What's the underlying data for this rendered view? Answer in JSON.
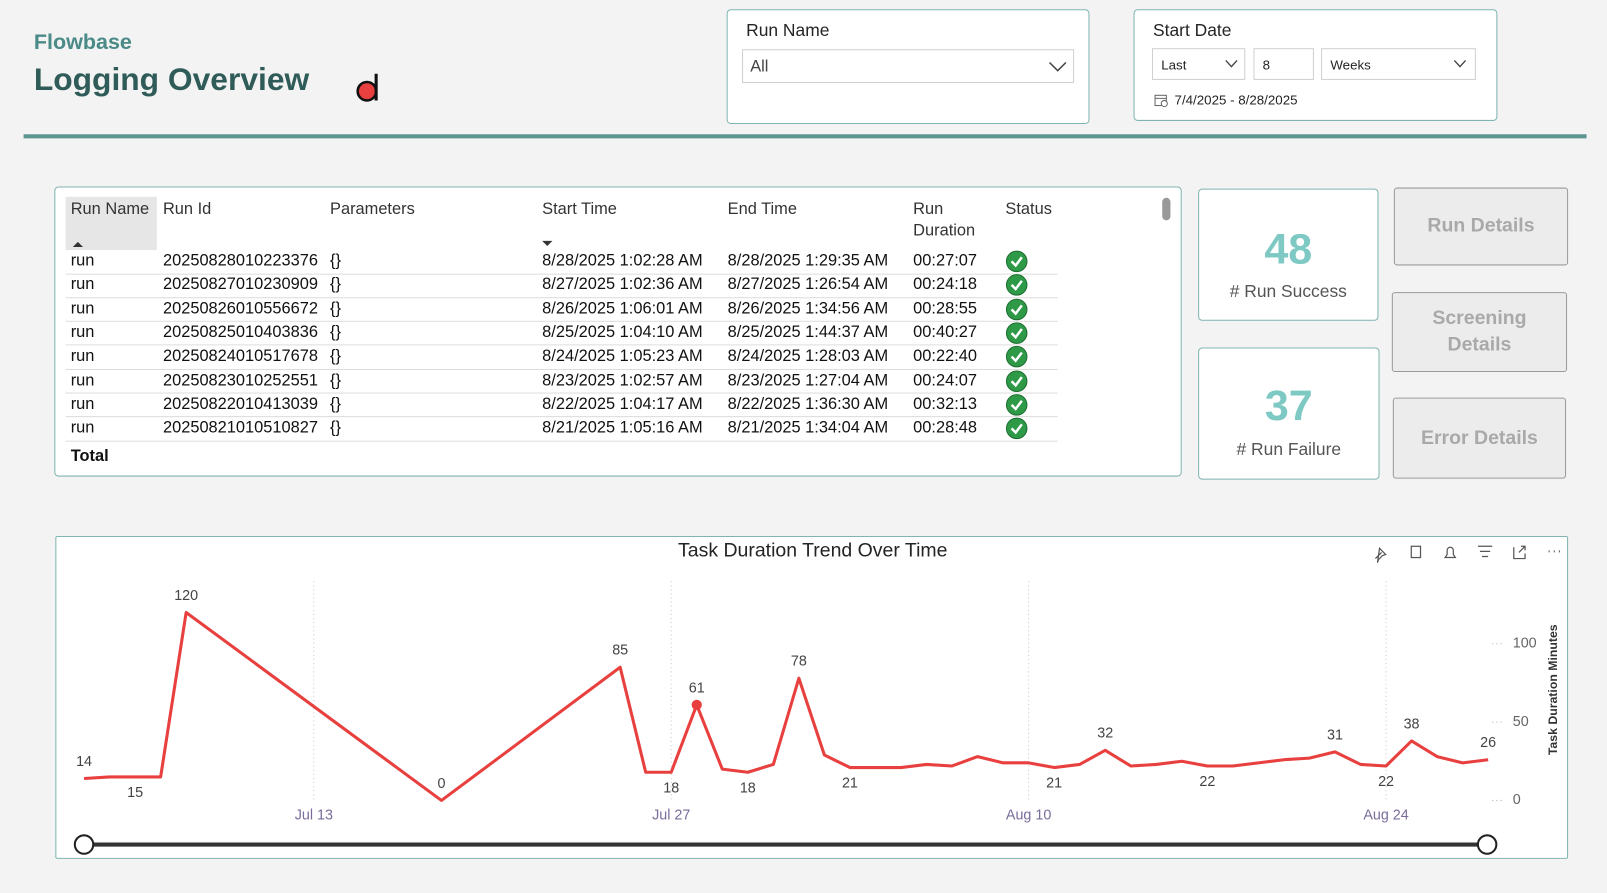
{
  "header": {
    "brand": "Flowbase",
    "title": "Logging Overview"
  },
  "filters": {
    "run_name": {
      "title": "Run Name",
      "value": "All"
    },
    "start_date": {
      "title": "Start Date",
      "mode": "Last",
      "count": "8",
      "unit": "Weeks",
      "range": "7/4/2025 - 8/28/2025"
    }
  },
  "table": {
    "columns": [
      "Run Name",
      "Run Id",
      "Parameters",
      "Start Time",
      "End Time",
      "Run Duration",
      "Status"
    ],
    "rows": [
      [
        "run",
        "20250828010223376",
        "{}",
        "8/28/2025 1:02:28 AM",
        "8/28/2025 1:29:35 AM",
        "00:27:07"
      ],
      [
        "run",
        "20250827010230909",
        "{}",
        "8/27/2025 1:02:36 AM",
        "8/27/2025 1:26:54 AM",
        "00:24:18"
      ],
      [
        "run",
        "20250826010556672",
        "{}",
        "8/26/2025 1:06:01 AM",
        "8/26/2025 1:34:56 AM",
        "00:28:55"
      ],
      [
        "run",
        "20250825010403836",
        "{}",
        "8/25/2025 1:04:10 AM",
        "8/25/2025 1:44:37 AM",
        "00:40:27"
      ],
      [
        "run",
        "20250824010517678",
        "{}",
        "8/24/2025 1:05:23 AM",
        "8/24/2025 1:28:03 AM",
        "00:22:40"
      ],
      [
        "run",
        "20250823010252551",
        "{}",
        "8/23/2025 1:02:57 AM",
        "8/23/2025 1:27:04 AM",
        "00:24:07"
      ],
      [
        "run",
        "20250822010413039",
        "{}",
        "8/22/2025 1:04:17 AM",
        "8/22/2025 1:36:30 AM",
        "00:32:13"
      ],
      [
        "run",
        "20250821010510827",
        "{}",
        "8/21/2025 1:05:16 AM",
        "8/21/2025 1:34:04 AM",
        "00:28:48"
      ]
    ],
    "total": "Total"
  },
  "cards": [
    {
      "value": 48,
      "label": "# Run Success"
    },
    {
      "value": 37,
      "label": "# Run Failure"
    }
  ],
  "buttons": [
    "Run Details",
    "Screening Details",
    "Error Details"
  ],
  "chart_data": {
    "type": "line",
    "title": "Task Duration Trend Over Time",
    "y_label": "Task Duration Minutes",
    "x": [
      "Jul 4",
      "Jul 5",
      "Jul 6",
      "Jul 7",
      "Jul 8",
      "Jul 18",
      "Jul 25",
      "Jul 26",
      "Jul 27",
      "Jul 28",
      "Jul 29",
      "Jul 30",
      "Jul 31",
      "Aug 1",
      "Aug 2",
      "Aug 3",
      "Aug 4",
      "Aug 5",
      "Aug 6",
      "Aug 7",
      "Aug 8",
      "Aug 9",
      "Aug 10",
      "Aug 11",
      "Aug 12",
      "Aug 13",
      "Aug 14",
      "Aug 15",
      "Aug 16",
      "Aug 17",
      "Aug 18",
      "Aug 19",
      "Aug 20",
      "Aug 21",
      "Aug 22",
      "Aug 23",
      "Aug 24",
      "Aug 25",
      "Aug 26",
      "Aug 27",
      "Aug 28"
    ],
    "values": [
      14,
      15,
      15,
      15,
      120,
      0,
      85,
      18,
      18,
      61,
      20,
      18,
      23,
      78,
      29,
      21,
      21,
      21,
      23,
      22,
      28,
      24,
      24,
      21,
      23,
      32,
      22,
      23,
      25,
      22,
      22,
      24,
      26,
      27,
      31,
      23,
      22,
      38,
      28,
      24,
      26
    ],
    "color": "#e8403f",
    "xlim": [
      "Jul 4",
      "Aug 28"
    ],
    "xticks": [
      "Jul 13",
      "Jul 27",
      "Aug 10",
      "Aug 24"
    ],
    "ylim": [
      0,
      140
    ],
    "yticks": [
      0,
      50,
      100
    ],
    "grid": "x"
  }
}
